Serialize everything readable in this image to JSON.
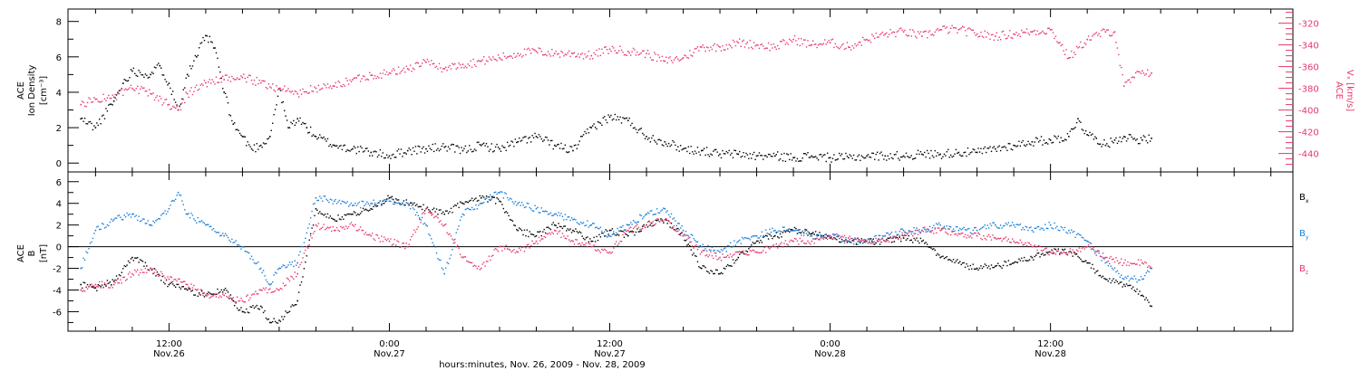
{
  "chart_data": [
    {
      "type": "scatter",
      "panel": "top",
      "ylabel_lines": [
        "ACE",
        "Ion Density",
        "[cm⁻³]"
      ],
      "ylim": [
        -0.5,
        8.7
      ],
      "yticks": [
        0,
        2,
        4,
        6,
        8
      ],
      "y2label_lines": [
        "ACE",
        "Vₓ [km/s]"
      ],
      "y2lim": [
        -457,
        -307
      ],
      "y2ticks": [
        -320,
        -340,
        -360,
        -380,
        -400,
        -420,
        -440
      ],
      "series": [
        {
          "color": "#000000",
          "axis": "left",
          "x": [
            7.2,
            8,
            9,
            9.5,
            10,
            11,
            11.5,
            12,
            12.5,
            13,
            13.5,
            14,
            14.5,
            15,
            15.5,
            16,
            16.5,
            17,
            17.5,
            18,
            18.5,
            19,
            19.5,
            20,
            21,
            22,
            23,
            24,
            25,
            26,
            27,
            28,
            29,
            30,
            31,
            32,
            33,
            34,
            35,
            36,
            37,
            38,
            39,
            40,
            41,
            42,
            43,
            44,
            45,
            46,
            47,
            48,
            49,
            50,
            51,
            52,
            53,
            54,
            55,
            56,
            57,
            58,
            59,
            60,
            61,
            61.5,
            62,
            62.5,
            63,
            63.5,
            64,
            65,
            65.5
          ],
          "y": [
            2.5,
            2.0,
            3.5,
            4.5,
            5.2,
            5.0,
            5.5,
            4.5,
            3.0,
            5.0,
            6.0,
            7.2,
            6.5,
            4.0,
            2.2,
            1.5,
            0.8,
            1.0,
            1.5,
            4.2,
            2.0,
            2.5,
            2.0,
            1.5,
            1.0,
            0.8,
            0.6,
            0.4,
            0.7,
            0.8,
            0.9,
            0.7,
            1.0,
            0.8,
            1.2,
            1.5,
            1.0,
            0.7,
            2.0,
            2.6,
            2.4,
            1.5,
            1.2,
            0.8,
            0.7,
            0.5,
            0.5,
            0.4,
            0.4,
            0.3,
            0.4,
            0.3,
            0.3,
            0.4,
            0.4,
            0.4,
            0.5,
            0.5,
            0.6,
            0.6,
            0.8,
            1.0,
            1.2,
            1.3,
            1.5,
            2.5,
            1.6,
            1.4,
            1.0,
            1.3,
            1.5,
            1.3,
            1.4
          ]
        },
        {
          "color": "#e8386a",
          "axis": "right",
          "x": [
            7.2,
            8,
            9,
            10,
            11,
            12,
            12.5,
            13,
            14,
            15,
            16,
            17,
            18,
            19,
            20,
            21,
            22,
            23,
            24,
            25,
            26,
            27,
            28,
            29,
            30,
            31,
            32,
            33,
            34,
            35,
            36,
            37,
            38,
            39,
            40,
            41,
            42,
            43,
            44,
            45,
            46,
            47,
            48,
            49,
            50,
            51,
            52,
            53,
            54,
            55,
            56,
            57,
            58,
            59,
            60,
            60.5,
            61,
            62,
            63,
            63.5,
            64,
            65,
            65.5
          ],
          "y": [
            -395,
            -390,
            -388,
            -380,
            -385,
            -395,
            -400,
            -385,
            -375,
            -372,
            -370,
            -375,
            -380,
            -385,
            -380,
            -378,
            -372,
            -368,
            -366,
            -362,
            -356,
            -362,
            -358,
            -355,
            -352,
            -348,
            -346,
            -348,
            -348,
            -350,
            -344,
            -346,
            -348,
            -355,
            -352,
            -342,
            -342,
            -338,
            -340,
            -342,
            -335,
            -340,
            -338,
            -342,
            -335,
            -330,
            -328,
            -332,
            -326,
            -326,
            -330,
            -332,
            -330,
            -328,
            -326,
            -338,
            -352,
            -335,
            -328,
            -328,
            -378,
            -364,
            -366
          ]
        }
      ]
    },
    {
      "type": "scatter",
      "panel": "bottom",
      "ylabel_lines": [
        "ACE",
        "B",
        "[nT]"
      ],
      "ylim": [
        -7.8,
        6.9
      ],
      "yticks": [
        -6,
        -4,
        -2,
        0,
        2,
        4,
        6
      ],
      "legend": [
        "Bₓ",
        "Bᵧ",
        "B_z"
      ],
      "legend_labels": [
        "B",
        "B",
        "B"
      ],
      "legend_subs": [
        "x",
        "y",
        "z"
      ],
      "legend_placement": "right",
      "series": [
        {
          "color": "#000000",
          "x": [
            7.2,
            8,
            9,
            10,
            11,
            12,
            13,
            14,
            15,
            15.5,
            16,
            17,
            17.5,
            18,
            19,
            20,
            21,
            22,
            23,
            24,
            25,
            26,
            27,
            28,
            29,
            30,
            31,
            32,
            33,
            34,
            35,
            36,
            37,
            38,
            39,
            40,
            41,
            42,
            43,
            44,
            45,
            46,
            47,
            48,
            49,
            50,
            51,
            52,
            53,
            54,
            55,
            56,
            57,
            58,
            59,
            60,
            61,
            62,
            63,
            64,
            65,
            65.5
          ],
          "y": [
            -3.5,
            -3.8,
            -3.2,
            -1.0,
            -2.0,
            -3.5,
            -4.0,
            -4.5,
            -4.0,
            -5.0,
            -6.0,
            -5.5,
            -7.0,
            -6.8,
            -5.0,
            3.5,
            2.5,
            3.0,
            3.5,
            4.5,
            4.0,
            3.5,
            3.0,
            4.0,
            4.5,
            4.2,
            1.5,
            1.0,
            2.0,
            1.5,
            0.5,
            1.5,
            1.0,
            2.0,
            2.5,
            1.0,
            -2.0,
            -2.5,
            -1.0,
            0.5,
            1.0,
            1.5,
            1.2,
            0.8,
            0.5,
            0.5,
            0.5,
            0.8,
            0.5,
            -1.0,
            -1.5,
            -2.0,
            -1.8,
            -1.5,
            -1.0,
            -0.5,
            -0.5,
            -1.5,
            -3.0,
            -3.5,
            -4.5,
            -5.5
          ]
        },
        {
          "color": "#1a7fd8",
          "x": [
            7.2,
            8,
            9,
            10,
            11,
            12,
            12.5,
            13,
            14,
            15,
            16,
            17,
            17.5,
            18,
            19,
            20,
            21,
            22,
            23,
            24,
            25,
            26,
            27,
            28,
            29,
            30,
            31,
            32,
            33,
            34,
            35,
            36,
            37,
            38,
            39,
            40,
            41,
            42,
            43,
            44,
            45,
            46,
            47,
            48,
            49,
            50,
            51,
            52,
            53,
            54,
            55,
            56,
            57,
            58,
            59,
            60,
            61,
            62,
            63,
            64,
            65,
            65.5
          ],
          "y": [
            -2.0,
            1.5,
            2.5,
            3.0,
            2.0,
            3.5,
            5.0,
            3.0,
            2.0,
            1.0,
            0.0,
            -2.0,
            -3.5,
            -2.0,
            -1.5,
            4.5,
            4.2,
            3.8,
            4.0,
            4.2,
            4.0,
            2.0,
            -2.5,
            3.0,
            4.0,
            5.0,
            4.0,
            3.5,
            3.0,
            2.5,
            2.0,
            1.0,
            2.0,
            3.0,
            3.5,
            1.5,
            0.0,
            -0.5,
            0.5,
            1.0,
            1.5,
            1.5,
            1.0,
            1.0,
            0.5,
            0.5,
            1.0,
            1.5,
            1.5,
            2.0,
            1.5,
            1.5,
            2.0,
            2.0,
            1.5,
            2.0,
            1.5,
            0.5,
            -1.5,
            -3.0,
            -3.0,
            -2.0
          ]
        },
        {
          "color": "#e8386a",
          "x": [
            7.2,
            8,
            9,
            10,
            11,
            12,
            13,
            14,
            15,
            16,
            17,
            18,
            18.5,
            19,
            20,
            21,
            22,
            23,
            24,
            25,
            26,
            27,
            28,
            29,
            30,
            31,
            32,
            33,
            34,
            35,
            36,
            37,
            38,
            39,
            40,
            41,
            42,
            43,
            44,
            45,
            46,
            47,
            48,
            49,
            50,
            51,
            52,
            53,
            54,
            55,
            56,
            57,
            58,
            59,
            60,
            61,
            62,
            63,
            64,
            65,
            65.5
          ],
          "y": [
            -4.0,
            -3.5,
            -3.5,
            -2.5,
            -2.0,
            -3.0,
            -3.5,
            -4.5,
            -4.5,
            -5.0,
            -4.0,
            -4.0,
            -3.0,
            -2.5,
            2.0,
            1.5,
            2.0,
            1.0,
            0.5,
            0.0,
            3.5,
            2.0,
            -1.0,
            -2.0,
            0.0,
            -0.5,
            0.5,
            1.5,
            0.5,
            0.0,
            -0.5,
            1.5,
            2.0,
            2.5,
            1.0,
            -0.5,
            -1.0,
            -0.5,
            -0.5,
            0.0,
            0.5,
            0.5,
            1.0,
            0.8,
            0.5,
            0.5,
            1.0,
            1.5,
            1.5,
            1.2,
            1.0,
            0.8,
            0.5,
            0.0,
            -0.5,
            -0.5,
            0.0,
            -1.0,
            -1.5,
            -1.5,
            -2.0
          ]
        }
      ]
    }
  ],
  "x_axis": {
    "xlim": [
      6.5,
      73.2
    ],
    "major_ticks": [
      {
        "x": 12,
        "time": "12:00",
        "date": "Nov.26"
      },
      {
        "x": 24,
        "time": "0:00",
        "date": "Nov.27"
      },
      {
        "x": 36,
        "time": "12:00",
        "date": "Nov.27"
      },
      {
        "x": 48,
        "time": "0:00",
        "date": "Nov.28"
      },
      {
        "x": 60,
        "time": "12:00",
        "date": "Nov.28"
      }
    ],
    "minor_tick_step": 2,
    "xlabel": "hours:minutes, Nov. 26, 2009 - Nov. 28, 2009"
  },
  "colors": {
    "black": "#000000",
    "red": "#e8386a",
    "blue": "#1a7fd8",
    "axis": "#000000"
  }
}
